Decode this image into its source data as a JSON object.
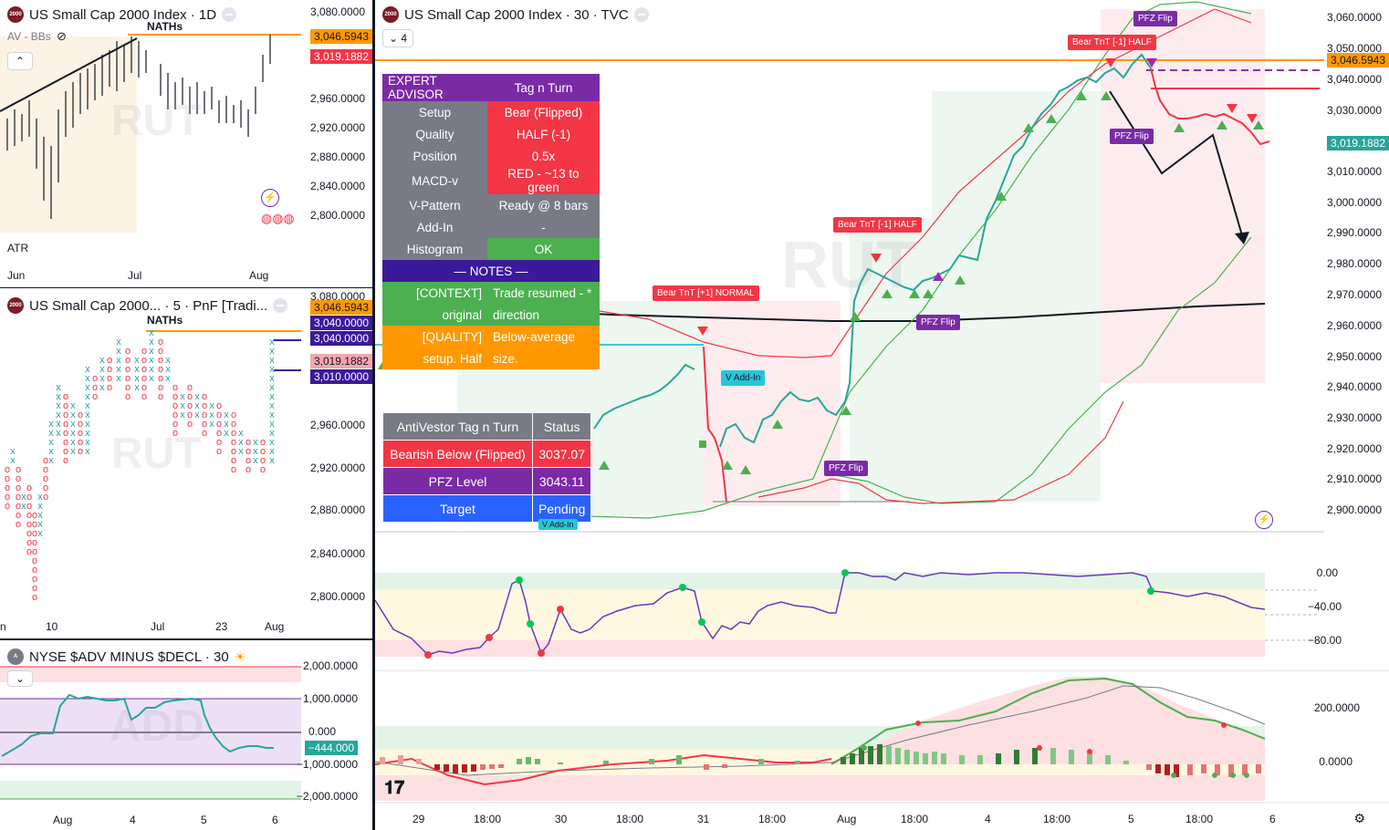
{
  "daily": {
    "title": "US Small Cap 2000 Index · 1D",
    "indicators": "AV - BBs",
    "nath_label": "NATHs",
    "watermark": "RUT",
    "atr_label": "ATR",
    "price_labels": [
      "3,080.0000",
      "2,960.0000",
      "2,920.0000",
      "2,880.0000",
      "2,840.0000",
      "2,800.0000"
    ],
    "tag_orange": "3,046.5943",
    "tag_red": "3,019.1882",
    "x_labels": [
      "Jun",
      "Jul",
      "Aug"
    ]
  },
  "pnf": {
    "title": "US Small Cap 2000... · 5 · PnF [Tradi...",
    "nath_label": "NATHs",
    "watermark": "RUT",
    "price_labels": [
      "3,080.0000",
      "2,960.0000",
      "2,920.0000",
      "2,880.0000",
      "2,840.0000",
      "2,800.0000"
    ],
    "tag_orange": "3,046.5943",
    "tag_purple1": "3,040.0000",
    "tag_purple2": "3,040.0000",
    "tag_pink": "3,019.1882",
    "tag_purple3": "3,010.0000",
    "x_labels": [
      "n",
      "10",
      "Jul",
      "23",
      "Aug"
    ]
  },
  "add": {
    "title": "NYSE $ADV MINUS $DECL · 30",
    "watermark": "ADD",
    "price_labels": [
      "2,000.0000",
      "1,000.0000",
      "0.000",
      "−1,000.0000",
      "−2,000.0000"
    ],
    "tag": "−444.000",
    "x_labels": [
      "Aug",
      "4",
      "5",
      "6"
    ]
  },
  "main": {
    "title": "US Small Cap 2000 Index · 30 · TVC",
    "collapse_count": "4",
    "watermark": "RUT",
    "price_labels": [
      "3,060.0000",
      "3,050.0000",
      "3,040.0000",
      "3,030.0000",
      "3,010.0000",
      "3,000.0000",
      "2,990.0000",
      "2,980.0000",
      "2,970.0000",
      "2,960.0000",
      "2,950.0000",
      "2,940.0000",
      "2,930.0000",
      "2,920.0000",
      "2,910.0000",
      "2,900.0000"
    ],
    "tag_orange": "3,046.5943",
    "tag_green": "3,019.1882",
    "osc_labels": [
      "0.00",
      "−40.00",
      "−80.00"
    ],
    "hist_labels": [
      "200.0000",
      "0.0000"
    ],
    "x_labels": [
      "29",
      "18:00",
      "30",
      "18:00",
      "31",
      "18:00",
      "Aug",
      "18:00",
      "4",
      "18:00",
      "5",
      "18:00",
      "6"
    ],
    "tags": {
      "bear_half_top": "Bear TnT [-1] HALF",
      "pfz_flip_top": "PFZ Flip",
      "pfz_flip_right": "PFZ Flip",
      "bear_half_mid": "Bear TnT [-1] HALF",
      "bear_normal": "Bear TnT [+1] NORMAL",
      "pfz_flip_mid": "PFZ Flip",
      "v_addin": "V Add-In",
      "pfz_flip_low": "PFZ Flip",
      "v_addin_low": "V Add-In"
    }
  },
  "expert": {
    "header": [
      "EXPERT ADVISOR",
      "Tag n Turn"
    ],
    "rows": [
      [
        "Setup",
        "Bear (Flipped)"
      ],
      [
        "Quality",
        "HALF (-1)"
      ],
      [
        "Position",
        "0.5x"
      ],
      [
        "MACD-v",
        "RED - ~13 to green"
      ],
      [
        "V-Pattern",
        "Ready @ 8 bars"
      ],
      [
        "Add-In",
        "-"
      ],
      [
        "Histogram",
        "OK"
      ]
    ],
    "notes_header": "— NOTES —",
    "notes": [
      [
        "[CONTEXT]",
        "Trade resumed - *"
      ],
      [
        "original",
        "direction"
      ],
      [
        "[QUALITY]",
        "Below-average"
      ],
      [
        "setup. Half",
        "size."
      ]
    ]
  },
  "antivestor": {
    "header": [
      "AntiVestor Tag n Turn",
      "Status"
    ],
    "rows": [
      [
        "Bearish Below (Flipped)",
        "3037.07"
      ],
      [
        "PFZ Level",
        "3043.11"
      ],
      [
        "Target",
        "Pending"
      ]
    ]
  },
  "colors": {
    "orange": "#ff9800",
    "red": "#f23645",
    "green": "#26a69a",
    "purple": "#7b2aa6"
  }
}
